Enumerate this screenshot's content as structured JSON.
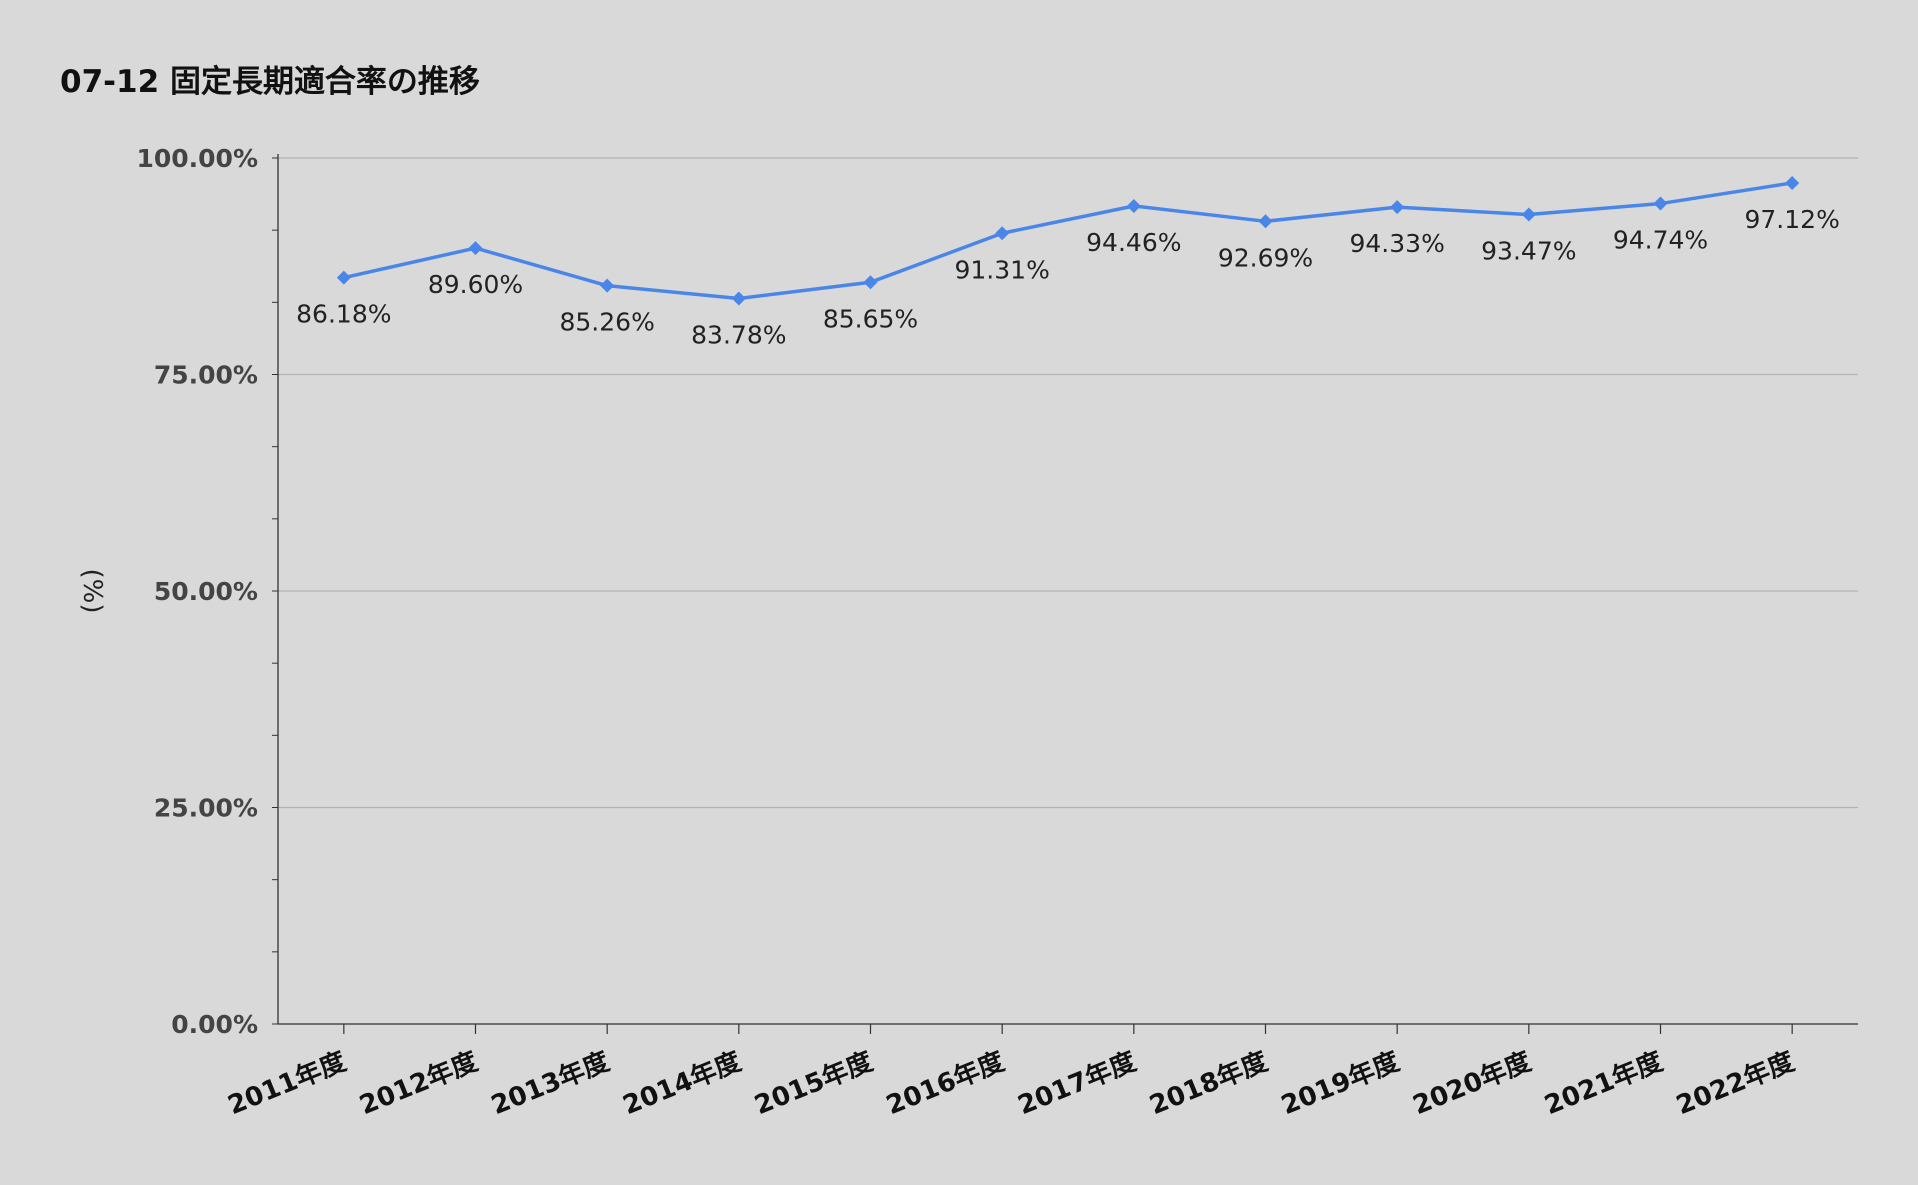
{
  "chart_data": {
    "type": "line",
    "title": "07-12 固定長期適合率の推移",
    "ylabel": "(%)",
    "xlabel": "",
    "ylim": [
      0,
      100
    ],
    "yticks": [
      0,
      25,
      50,
      75,
      100
    ],
    "ytick_labels": [
      "0.00%",
      "25.00%",
      "50.00%",
      "75.00%",
      "100.00%"
    ],
    "grid": true,
    "legend": "none",
    "categories": [
      "2011年度",
      "2012年度",
      "2013年度",
      "2014年度",
      "2015年度",
      "2016年度",
      "2017年度",
      "2018年度",
      "2019年度",
      "2020年度",
      "2021年度",
      "2022年度"
    ],
    "series": [
      {
        "values": [
          86.18,
          89.6,
          85.26,
          83.78,
          85.65,
          91.31,
          94.46,
          92.69,
          94.33,
          93.47,
          94.74,
          97.12
        ],
        "data_labels": [
          "86.18%",
          "89.60%",
          "85.26%",
          "83.78%",
          "85.65%",
          "91.31%",
          "94.46%",
          "92.69%",
          "94.33%",
          "93.47%",
          "94.74%",
          "97.12%"
        ],
        "color": "#4a86e8",
        "marker": "diamond"
      }
    ]
  }
}
